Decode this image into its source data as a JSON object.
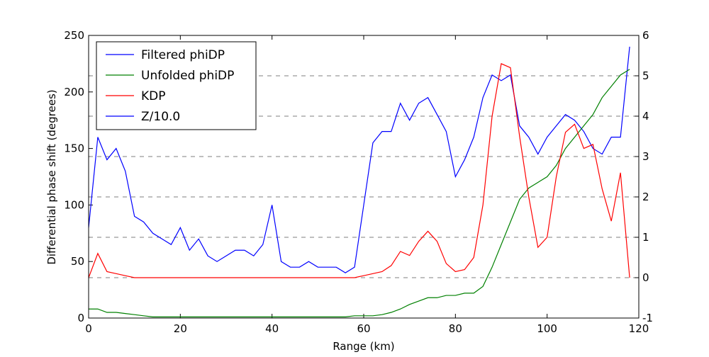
{
  "chart_data": {
    "type": "line",
    "xlabel": "Range (km)",
    "ylabel": "Differential phase shift (degrees)",
    "x": [
      0,
      2,
      4,
      6,
      8,
      10,
      12,
      14,
      16,
      18,
      20,
      22,
      24,
      26,
      28,
      30,
      32,
      34,
      36,
      38,
      40,
      42,
      44,
      46,
      48,
      50,
      52,
      54,
      56,
      58,
      60,
      62,
      64,
      66,
      68,
      70,
      72,
      74,
      76,
      78,
      80,
      82,
      84,
      86,
      88,
      90,
      92,
      94,
      96,
      98,
      100,
      102,
      104,
      106,
      108,
      110,
      112,
      114,
      116,
      118
    ],
    "series": [
      {
        "name": "Filtered phiDP",
        "color": "#0000ff",
        "axis": "y",
        "values": [
          80,
          160,
          140,
          150,
          130,
          90,
          85,
          75,
          70,
          65,
          80,
          60,
          70,
          55,
          50,
          55,
          60,
          60,
          55,
          65,
          100,
          50,
          45,
          45,
          50,
          45,
          45,
          45,
          40,
          45,
          100,
          155,
          165,
          165,
          190,
          175,
          190,
          195,
          180,
          165,
          125,
          140,
          160,
          195,
          215,
          210,
          215,
          170,
          160,
          145,
          160,
          170,
          180,
          175,
          165,
          150,
          145,
          160,
          160,
          240
        ]
      },
      {
        "name": "Unfolded phiDP",
        "color": "#008000",
        "axis": "y",
        "values": [
          8,
          8,
          5,
          5,
          4,
          3,
          2,
          1,
          1,
          1,
          1,
          1,
          1,
          1,
          1,
          1,
          1,
          1,
          1,
          1,
          1,
          1,
          1,
          1,
          1,
          1,
          1,
          1,
          1,
          2,
          2,
          2,
          3,
          5,
          8,
          12,
          15,
          18,
          18,
          20,
          20,
          22,
          22,
          28,
          45,
          65,
          85,
          105,
          115,
          120,
          125,
          135,
          150,
          160,
          170,
          180,
          195,
          205,
          215,
          220
        ]
      },
      {
        "name": "KDP",
        "color": "#ff0000",
        "axis": "y2",
        "values": [
          0.0,
          0.6,
          0.15,
          0.1,
          0.05,
          0.0,
          0.0,
          0.0,
          0.0,
          0.0,
          0.0,
          0.0,
          0.0,
          0.0,
          0.0,
          0.0,
          0.0,
          0.0,
          0.0,
          0.0,
          0.0,
          0.0,
          0.0,
          0.0,
          0.0,
          0.0,
          0.0,
          0.0,
          0.0,
          0.0,
          0.05,
          0.1,
          0.15,
          0.3,
          0.65,
          0.55,
          0.9,
          1.15,
          0.9,
          0.35,
          0.15,
          0.2,
          0.5,
          1.8,
          4.0,
          5.3,
          5.2,
          3.5,
          2.0,
          0.75,
          1.0,
          2.5,
          3.6,
          3.8,
          3.2,
          3.3,
          2.2,
          1.4,
          2.6,
          0.0
        ]
      },
      {
        "name": "Z/10.0",
        "color": "#0000ff",
        "axis": "y",
        "values": [
          null,
          null,
          null,
          null,
          null,
          null,
          null,
          null,
          null,
          null,
          null,
          null,
          null,
          null,
          null,
          null,
          null,
          null,
          null,
          null,
          null,
          null,
          null,
          null,
          null,
          null,
          null,
          null,
          null,
          null,
          null,
          null,
          null,
          null,
          null,
          null,
          null,
          null,
          null,
          null,
          null,
          null,
          null,
          null,
          null,
          null,
          null,
          null,
          null,
          null,
          null,
          null,
          null,
          null,
          null,
          null,
          null,
          null,
          null,
          null
        ]
      }
    ],
    "xlim": [
      0,
      120
    ],
    "xticks": [
      0,
      20,
      40,
      60,
      80,
      100,
      120
    ],
    "ylim": [
      0,
      250
    ],
    "yticks": [
      0,
      50,
      100,
      150,
      200,
      250
    ],
    "y2lim": [
      -1,
      6
    ],
    "y2ticks": [
      -1,
      0,
      1,
      2,
      3,
      4,
      5,
      6
    ],
    "grid": true,
    "legend": "upper left"
  }
}
